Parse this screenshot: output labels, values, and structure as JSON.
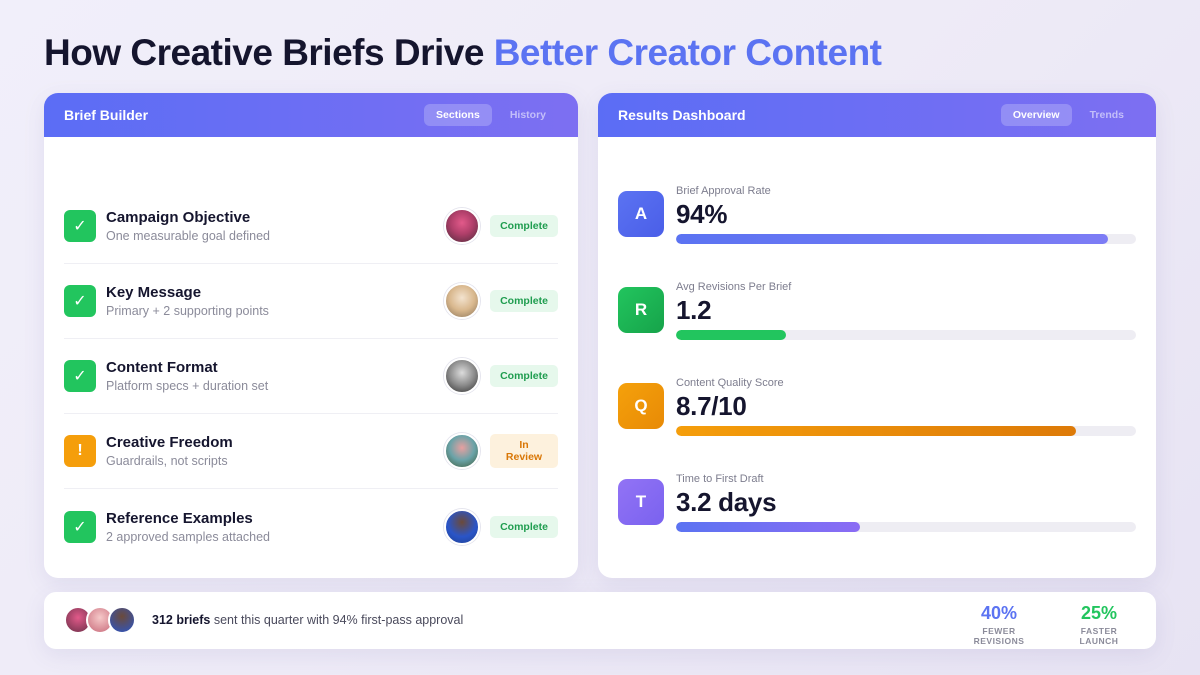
{
  "title": {
    "part1": "How Creative Briefs Drive",
    "accent": "Better Creator Content"
  },
  "colors": {
    "accent": "#5b73f2",
    "complete": "#22c55e",
    "review": "#f59e0b",
    "metric_a": "#4f68f0",
    "metric_r": "#22c55e",
    "metric_q": "#f59e0b",
    "metric_t": "#8b6cf4"
  },
  "brief_builder": {
    "title": "Brief Builder",
    "tabs": [
      "Sections",
      "History"
    ],
    "active_tab": "Sections",
    "items": [
      {
        "title": "Campaign Objective",
        "subtitle": "One measurable goal defined",
        "status": "Complete",
        "icon": "check-icon",
        "check_symbol": "✓"
      },
      {
        "title": "Key Message",
        "subtitle": "Primary + 2 supporting points",
        "status": "Complete",
        "icon": "check-icon",
        "check_symbol": "✓"
      },
      {
        "title": "Content Format",
        "subtitle": "Platform specs + duration set",
        "status": "Complete",
        "icon": "check-icon",
        "check_symbol": "✓"
      },
      {
        "title": "Creative Freedom",
        "subtitle": "Guardrails, not scripts",
        "status": "In Review",
        "icon": "exclamation-icon",
        "check_symbol": "!"
      },
      {
        "title": "Reference Examples",
        "subtitle": "2 approved samples attached",
        "status": "Complete",
        "icon": "check-icon",
        "check_symbol": "✓"
      }
    ]
  },
  "results_dashboard": {
    "title": "Results Dashboard",
    "tabs": [
      "Overview",
      "Trends"
    ],
    "active_tab": "Overview",
    "metrics": [
      {
        "letter": "A",
        "label": "Brief Approval Rate",
        "value": "94%",
        "fill": 0.94
      },
      {
        "letter": "R",
        "label": "Avg Revisions Per Brief",
        "value": "1.2",
        "fill": 0.24
      },
      {
        "letter": "Q",
        "label": "Content Quality Score",
        "value": "8.7/10",
        "fill": 0.87
      },
      {
        "letter": "T",
        "label": "Time to First Draft",
        "value": "3.2 days",
        "fill": 0.4
      }
    ]
  },
  "footer": {
    "count": "312 briefs",
    "text": " sent this quarter with 94% first-pass approval",
    "stats": [
      {
        "value": "40%",
        "label": "FEWER REVISIONS"
      },
      {
        "value": "25%",
        "label": "FASTER LAUNCH"
      }
    ]
  }
}
